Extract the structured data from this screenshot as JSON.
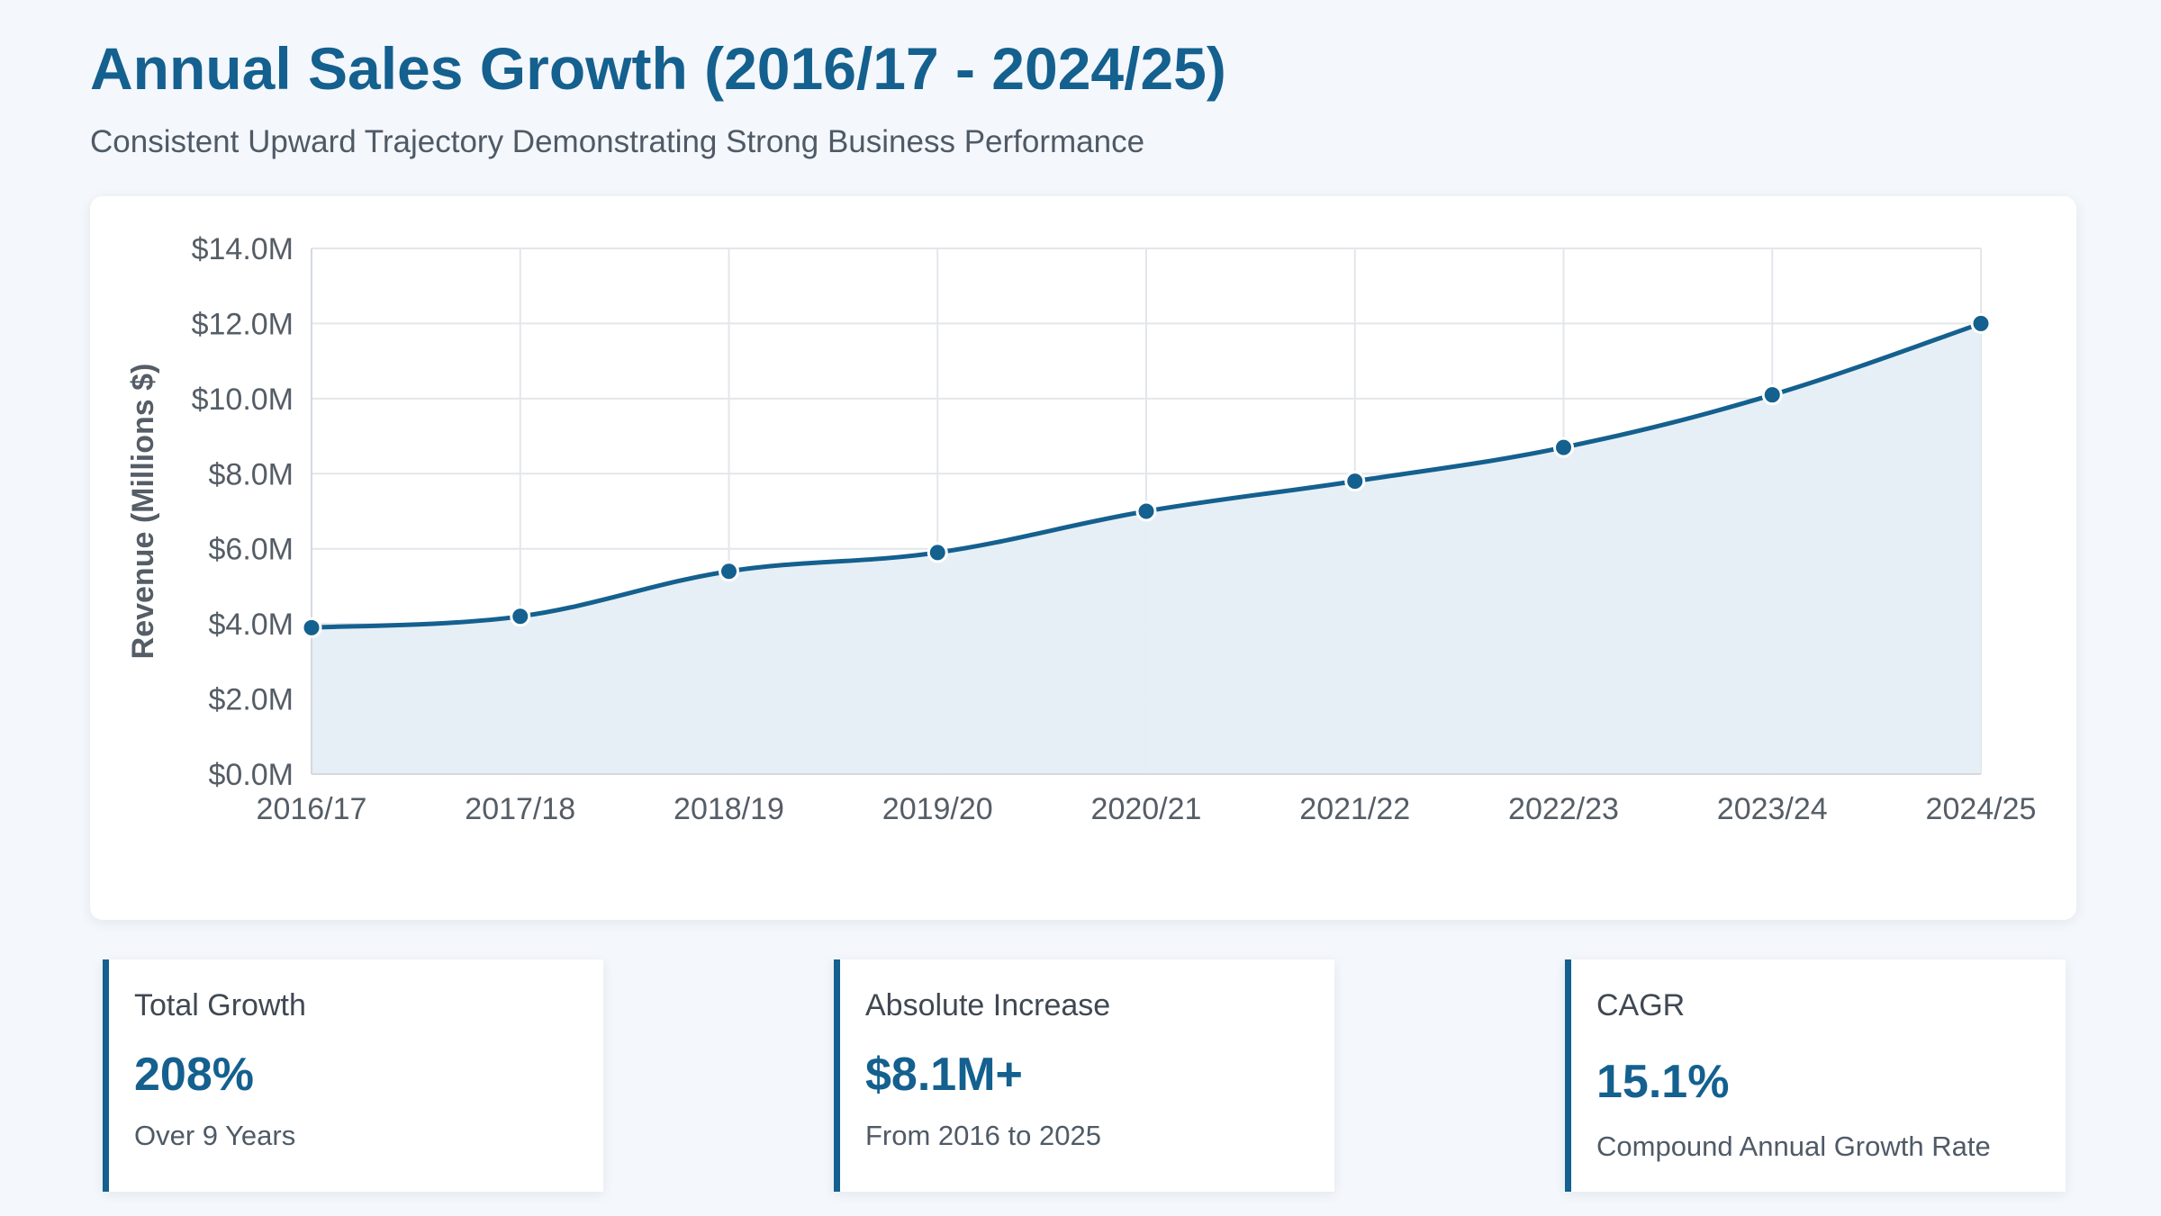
{
  "header": {
    "title": "Annual Sales Growth (2016/17 - 2024/25)",
    "subtitle": "Consistent Upward Trajectory Demonstrating Strong Business Performance"
  },
  "chart_data": {
    "type": "area",
    "title": "",
    "xlabel": "",
    "ylabel": "Revenue (Millions $)",
    "categories": [
      "2016/17",
      "2017/18",
      "2018/19",
      "2019/20",
      "2020/21",
      "2021/22",
      "2022/23",
      "2023/24",
      "2024/25"
    ],
    "series": [
      {
        "name": "Revenue",
        "values": [
          3.9,
          4.2,
          5.4,
          5.9,
          7.0,
          7.8,
          8.7,
          10.1,
          12.0
        ]
      }
    ],
    "ylim": [
      0,
      14
    ],
    "yticks": [
      0,
      2,
      4,
      6,
      8,
      10,
      12,
      14
    ],
    "ytick_labels": [
      "$0.0M",
      "$2.0M",
      "$4.0M",
      "$6.0M",
      "$8.0M",
      "$10.0M",
      "$12.0M",
      "$14.0M"
    ],
    "grid": true,
    "legend": "none",
    "colors": {
      "line": "#14608f",
      "fill": "#e6eef6",
      "grid": "#e3e6ea",
      "point_stroke": "#ffffff"
    }
  },
  "stats": [
    {
      "label": "Total Growth",
      "value": "208%",
      "desc": "Over 9 Years"
    },
    {
      "label": "Absolute Increase",
      "value": "$8.1M+",
      "desc": "From 2016 to 2025"
    },
    {
      "label": "CAGR",
      "value": "15.1%",
      "desc": "Compound Annual Growth Rate"
    }
  ]
}
